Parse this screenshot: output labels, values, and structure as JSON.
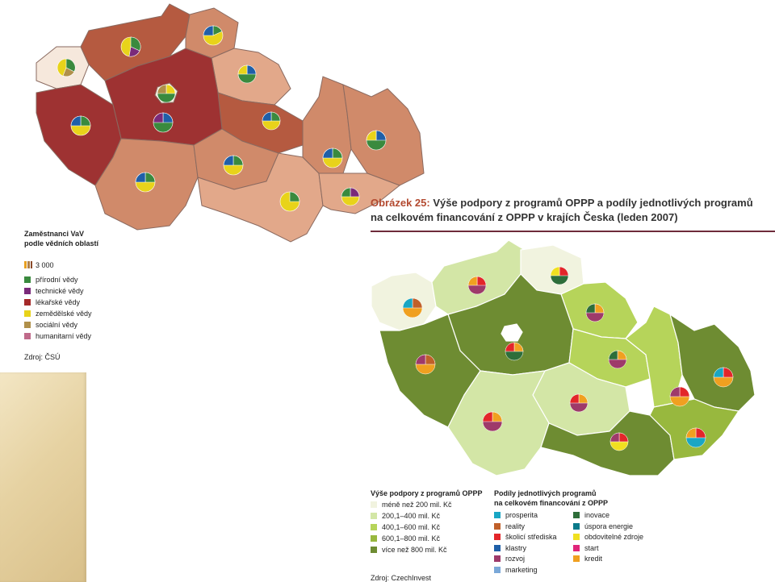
{
  "left_map": {
    "legend": {
      "title_line1": "Zaměstnanci VaV",
      "title_line2": "podle vědních oblastí",
      "size_label": "3 000",
      "items": [
        {
          "label": "přírodní vědy",
          "color": "#3a8a3e"
        },
        {
          "label": "technické vědy",
          "color": "#7a2a7a"
        },
        {
          "label": "lékařské vědy",
          "color": "#a52a2a"
        },
        {
          "label": "zemědělské vědy",
          "color": "#e8d31a"
        },
        {
          "label": "sociální vědy",
          "color": "#b0904a"
        },
        {
          "label": "humanitarní vědy",
          "color": "#c06a8a"
        }
      ]
    },
    "source": "Zdroj: ČSÚ",
    "palette": {
      "dark": "#9e3232",
      "mid": "#b55a40",
      "light": "#d08a6a",
      "lighter": "#e2a88a",
      "lightest": "#f6e8dc"
    }
  },
  "figure": {
    "number": "Obrázek 25:",
    "title_line1": " Výše podpory z programů OPPP a podíly jednotlivých programů",
    "title_line2": "na celkovém financování  z OPPP v krajích Česka (leden 2007)"
  },
  "right_map": {
    "legend_left": {
      "title": "Výše podpory z programů OPPP",
      "items": [
        {
          "label": "méně než 200 mil. Kč",
          "color": "#f1f3df"
        },
        {
          "label": "200,1–400 mil. Kč",
          "color": "#d3e6a6"
        },
        {
          "label": "400,1–600 mil. Kč",
          "color": "#b6d45a"
        },
        {
          "label": "600,1–800 mil. Kč",
          "color": "#98b83e"
        },
        {
          "label": "více než 800 mil. Kč",
          "color": "#6e8c32"
        }
      ]
    },
    "legend_right": {
      "title_line1": "Podíly jednotlivých programů",
      "title_line2": "na celkovém financování z OPPP",
      "col1": [
        {
          "label": "prosperita",
          "color": "#1aa6c4"
        },
        {
          "label": "reality",
          "color": "#c0602a"
        },
        {
          "label": "školicí střediska",
          "color": "#e3262a"
        },
        {
          "label": "klastry",
          "color": "#1f5fa8"
        },
        {
          "label": "rozvoj",
          "color": "#9e3a6a"
        },
        {
          "label": "marketing",
          "color": "#7aa8d8"
        }
      ],
      "col2": [
        {
          "label": "inovace",
          "color": "#2e6e3a"
        },
        {
          "label": "úspora energie",
          "color": "#0a7a8a"
        },
        {
          "label": "obdovitelné zdroje",
          "color": "#f0e020"
        },
        {
          "label": "start",
          "color": "#e0257a"
        },
        {
          "label": "kredit",
          "color": "#f0a020"
        }
      ]
    },
    "source": "Zdroj: CzechInvest"
  }
}
